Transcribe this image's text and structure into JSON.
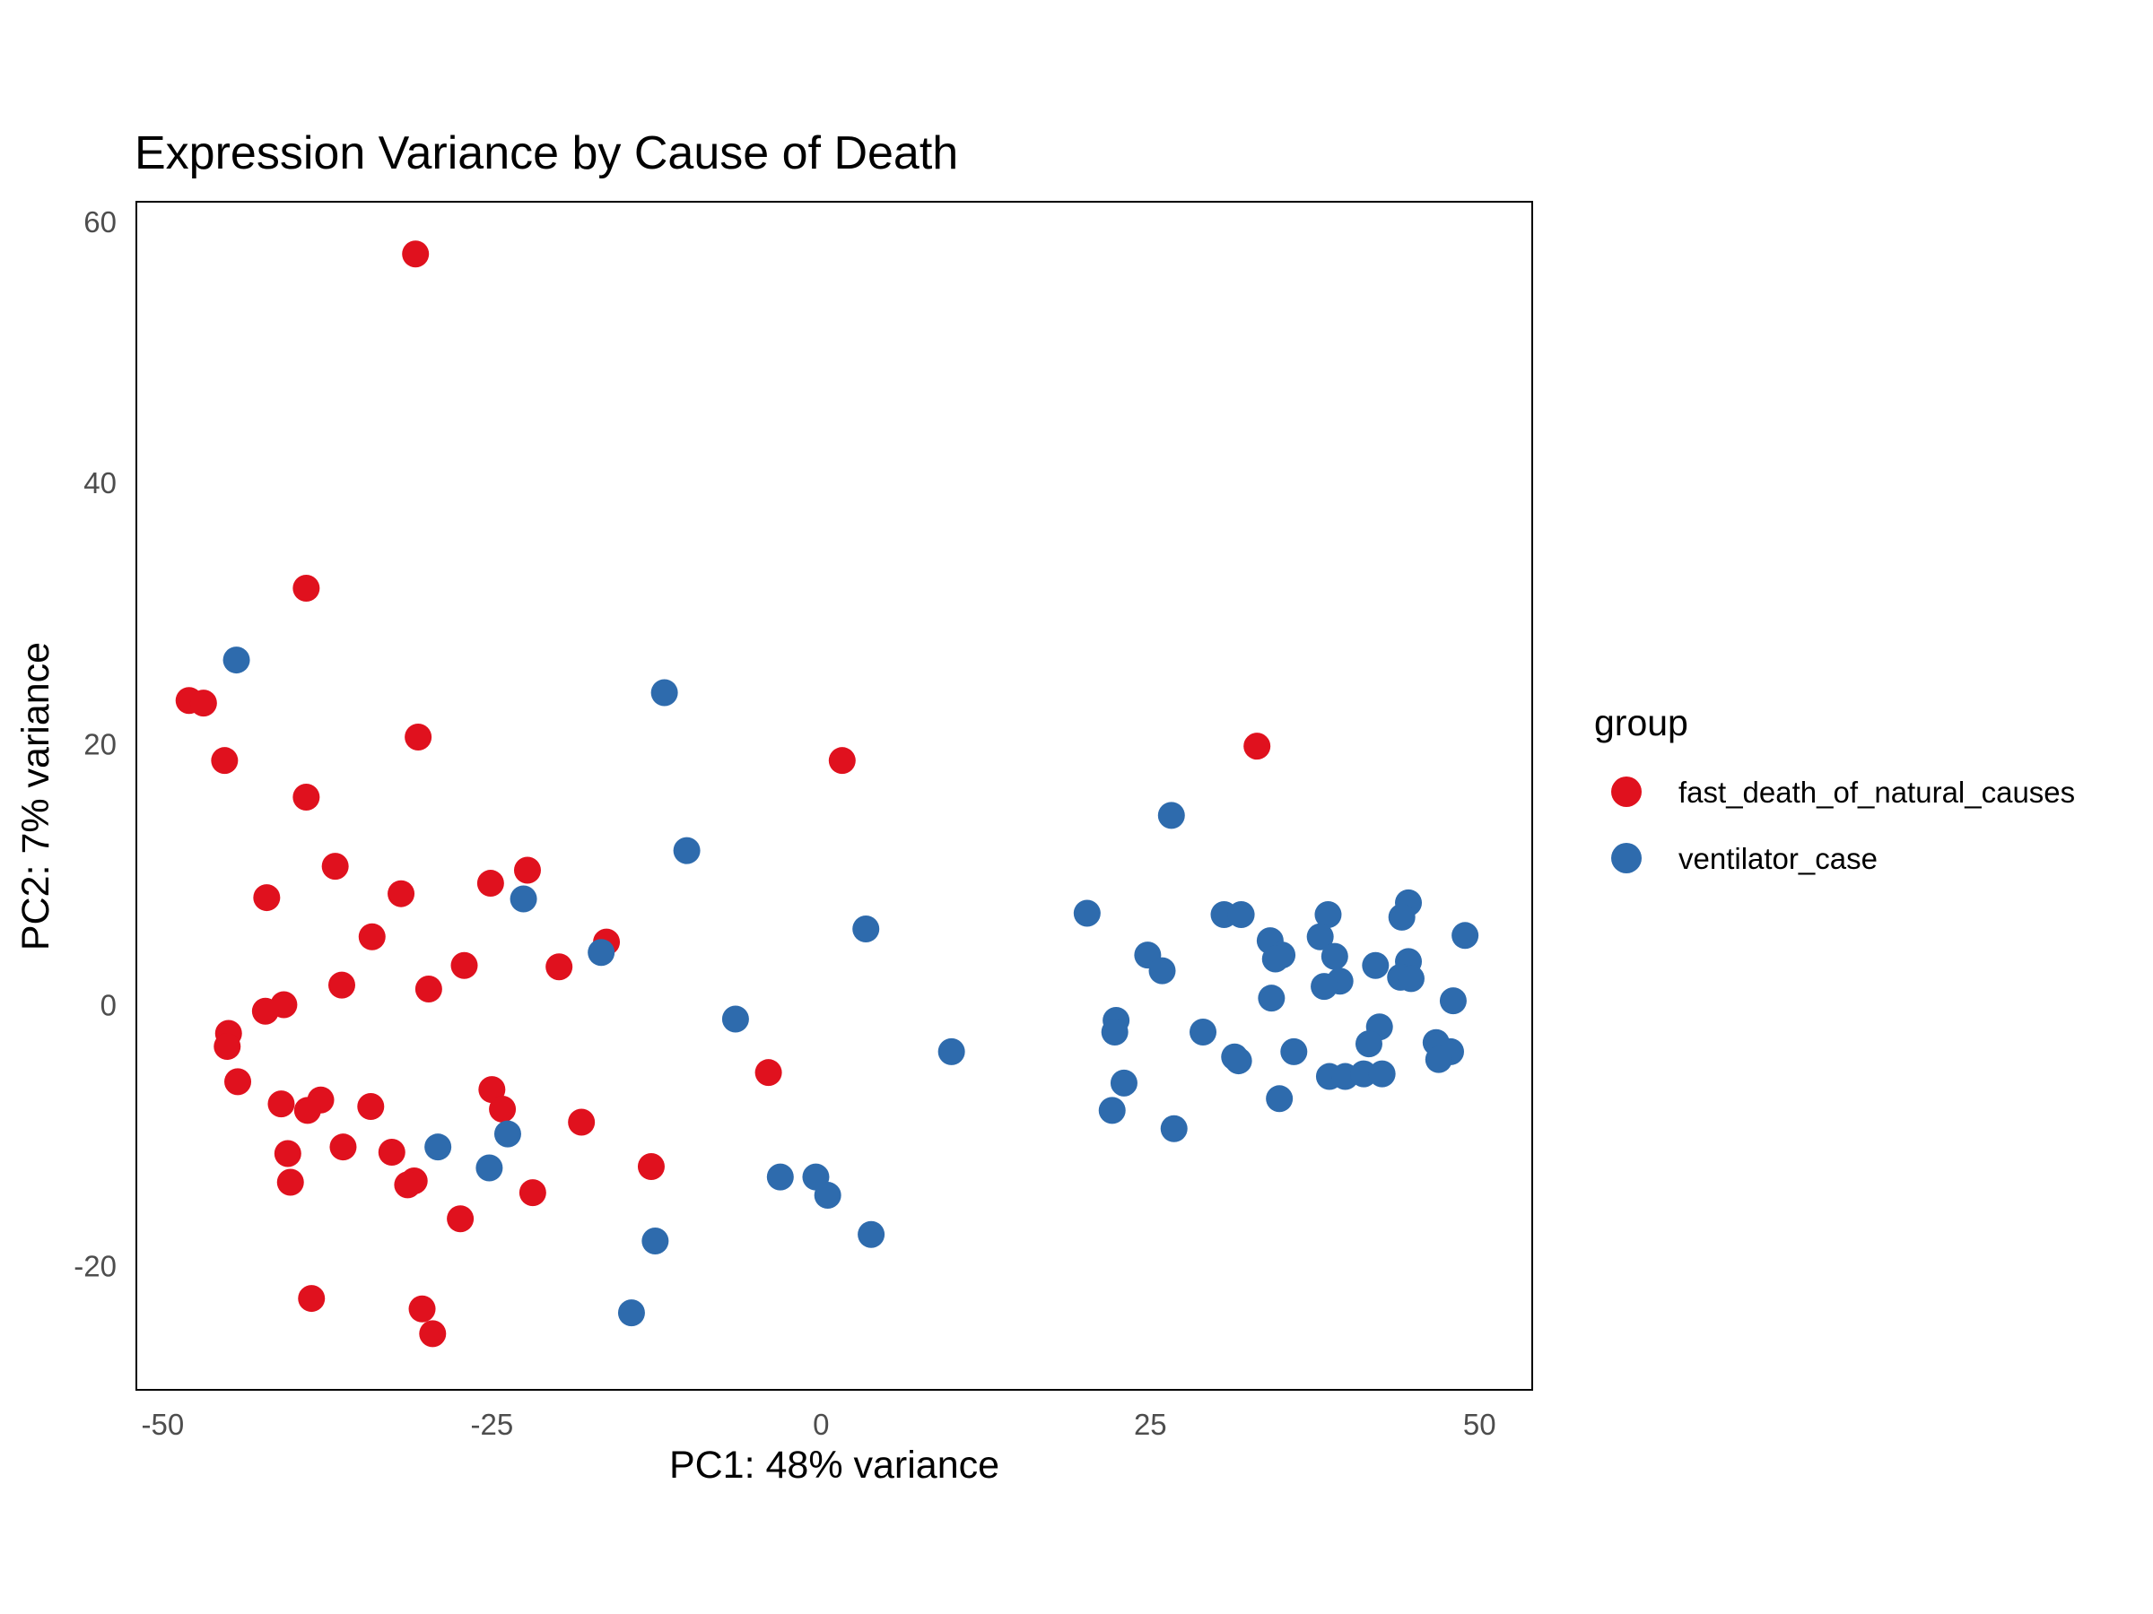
{
  "chart_data": {
    "type": "scatter",
    "title": "Expression Variance by Cause of Death",
    "xlabel": "PC1: 48% variance",
    "ylabel": "PC2: 7% variance",
    "xlim": [
      -52,
      54
    ],
    "ylim": [
      -29.5,
      61.5
    ],
    "xticks": [
      -50,
      -25,
      0,
      25,
      50
    ],
    "yticks": [
      -20,
      0,
      20,
      40,
      60
    ],
    "xtick_labels": [
      "-50",
      "-25",
      "0",
      "25",
      "50"
    ],
    "ytick_labels": [
      "-20",
      "0",
      "20",
      "40",
      "60"
    ],
    "grid": false,
    "legend": {
      "title": "group",
      "position": "right"
    },
    "series": [
      {
        "name": "fast_death_of_natural_causes",
        "color": "#e0111e",
        "points": [
          [
            -30.8,
            57.5
          ],
          [
            -39.1,
            31.9
          ],
          [
            -48.0,
            23.3
          ],
          [
            -46.9,
            23.1
          ],
          [
            -30.6,
            20.5
          ],
          [
            1.6,
            18.7
          ],
          [
            33.1,
            19.8
          ],
          [
            -45.3,
            18.7
          ],
          [
            -39.1,
            15.9
          ],
          [
            -36.9,
            10.6
          ],
          [
            -22.3,
            10.3
          ],
          [
            -25.1,
            9.3
          ],
          [
            -31.9,
            8.5
          ],
          [
            -42.1,
            8.2
          ],
          [
            -34.1,
            5.2
          ],
          [
            -16.3,
            4.8
          ],
          [
            -27.1,
            3.0
          ],
          [
            -19.9,
            2.9
          ],
          [
            -36.4,
            1.5
          ],
          [
            -29.8,
            1.2
          ],
          [
            -40.8,
            0.0
          ],
          [
            -42.2,
            -0.5
          ],
          [
            -45.0,
            -2.2
          ],
          [
            -45.1,
            -3.2
          ],
          [
            -44.3,
            -5.9
          ],
          [
            -4.0,
            -5.2
          ],
          [
            -25.0,
            -6.5
          ],
          [
            -38.0,
            -7.3
          ],
          [
            -41.0,
            -7.6
          ],
          [
            -34.2,
            -7.8
          ],
          [
            -39.0,
            -8.1
          ],
          [
            -24.2,
            -8.0
          ],
          [
            -18.2,
            -9.0
          ],
          [
            -36.3,
            -10.9
          ],
          [
            -32.6,
            -11.3
          ],
          [
            -40.5,
            -11.4
          ],
          [
            -12.9,
            -12.4
          ],
          [
            -30.9,
            -13.5
          ],
          [
            -31.4,
            -13.8
          ],
          [
            -40.3,
            -13.6
          ],
          [
            -21.9,
            -14.4
          ],
          [
            -27.4,
            -16.4
          ],
          [
            -38.7,
            -22.5
          ],
          [
            -30.3,
            -23.3
          ],
          [
            -29.5,
            -25.2
          ]
        ]
      },
      {
        "name": "ventilator_case",
        "color": "#2e6bad",
        "points": [
          [
            -44.4,
            26.4
          ],
          [
            -11.9,
            23.9
          ],
          [
            26.6,
            14.5
          ],
          [
            -10.2,
            11.8
          ],
          [
            -22.6,
            8.1
          ],
          [
            44.6,
            7.8
          ],
          [
            20.2,
            7.0
          ],
          [
            30.6,
            6.9
          ],
          [
            31.9,
            6.9
          ],
          [
            38.5,
            6.9
          ],
          [
            44.1,
            6.7
          ],
          [
            3.4,
            5.8
          ],
          [
            48.9,
            5.3
          ],
          [
            34.1,
            4.9
          ],
          [
            37.9,
            5.2
          ],
          [
            -16.7,
            4.0
          ],
          [
            24.8,
            3.8
          ],
          [
            35.0,
            3.8
          ],
          [
            34.5,
            3.5
          ],
          [
            39.0,
            3.7
          ],
          [
            44.6,
            3.3
          ],
          [
            42.1,
            3.0
          ],
          [
            25.9,
            2.6
          ],
          [
            44.0,
            2.1
          ],
          [
            44.8,
            2.0
          ],
          [
            39.4,
            1.8
          ],
          [
            38.2,
            1.4
          ],
          [
            34.2,
            0.5
          ],
          [
            48.0,
            0.3
          ],
          [
            -6.5,
            -1.1
          ],
          [
            22.4,
            -1.2
          ],
          [
            42.4,
            -1.7
          ],
          [
            22.3,
            -2.1
          ],
          [
            29.0,
            -2.1
          ],
          [
            41.6,
            -3.0
          ],
          [
            46.7,
            -2.9
          ],
          [
            9.9,
            -3.6
          ],
          [
            35.9,
            -3.6
          ],
          [
            47.8,
            -3.6
          ],
          [
            31.4,
            -4.0
          ],
          [
            31.7,
            -4.3
          ],
          [
            46.9,
            -4.2
          ],
          [
            38.6,
            -5.5
          ],
          [
            39.8,
            -5.5
          ],
          [
            41.2,
            -5.3
          ],
          [
            42.6,
            -5.3
          ],
          [
            23.0,
            -6.0
          ],
          [
            34.8,
            -7.2
          ],
          [
            22.1,
            -8.1
          ],
          [
            -29.1,
            -10.9
          ],
          [
            -23.8,
            -9.9
          ],
          [
            26.8,
            -9.5
          ],
          [
            -25.2,
            -12.5
          ],
          [
            -3.1,
            -13.2
          ],
          [
            -0.4,
            -13.2
          ],
          [
            0.5,
            -14.6
          ],
          [
            3.8,
            -17.6
          ],
          [
            -12.6,
            -18.1
          ],
          [
            -14.4,
            -23.6
          ]
        ]
      }
    ]
  }
}
